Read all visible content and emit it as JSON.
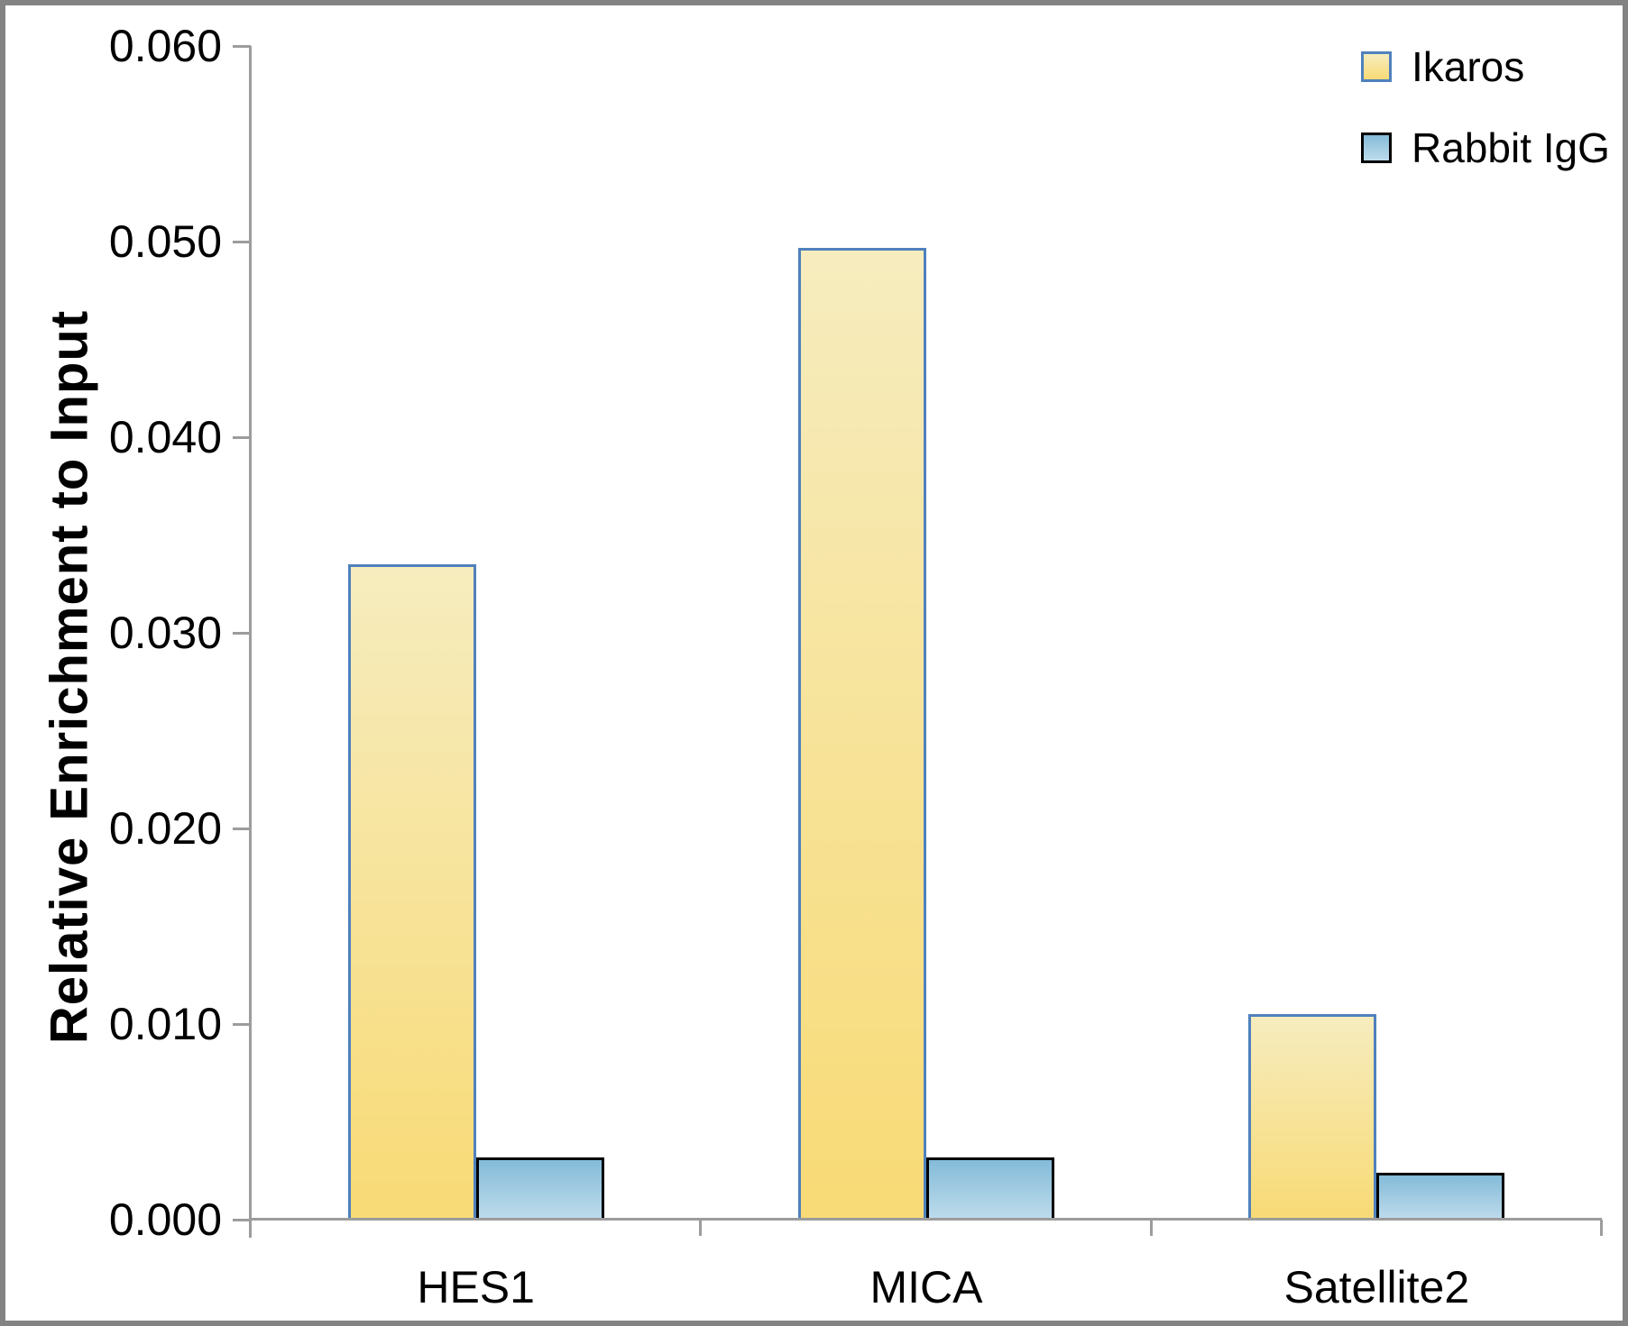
{
  "chart_data": {
    "type": "bar",
    "title": "",
    "ylabel": "Relative Enrichment to Input",
    "xlabel": "",
    "categories": [
      "HES1",
      "MICA",
      "Satellite2"
    ],
    "series": [
      {
        "name": "Ikaros",
        "values": [
          0.0335,
          0.0497,
          0.0105
        ],
        "fill_top": "#F6ECBE",
        "fill_bottom": "#F8DA75",
        "border": "#4F81BD"
      },
      {
        "name": "Rabbit IgG",
        "values": [
          0.0032,
          0.0032,
          0.0024
        ],
        "fill_top": "#84BBD8",
        "fill_bottom": "#BEDCEC",
        "border": "#000000"
      }
    ],
    "ylim": [
      0,
      0.06
    ],
    "ytick_step": 0.01,
    "ytick_labels": [
      "0.000",
      "0.010",
      "0.020",
      "0.030",
      "0.040",
      "0.050",
      "0.060"
    ],
    "grid": false,
    "legend_position": "top-right",
    "axis_color": "#9C9C9C",
    "frame_color": "#838383",
    "text_color": "#000000",
    "background_color": "#FFFFFF"
  }
}
